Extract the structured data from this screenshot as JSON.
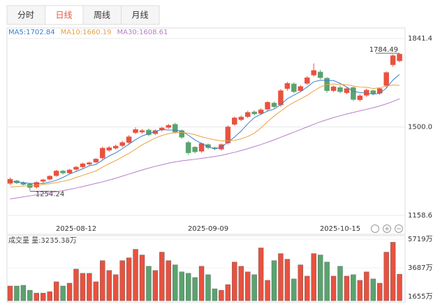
{
  "tabs": [
    "分时",
    "日线",
    "周线",
    "月线"
  ],
  "active_tab": 1,
  "chart_data": {
    "type": "candlestick",
    "categories": [
      null,
      null,
      null,
      null,
      null,
      null,
      null,
      null,
      null,
      null,
      "2025-08-12",
      null,
      null,
      null,
      null,
      null,
      null,
      null,
      null,
      null,
      null,
      null,
      null,
      null,
      null,
      null,
      null,
      null,
      null,
      null,
      "2025-09-09",
      null,
      null,
      null,
      null,
      null,
      null,
      null,
      null,
      null,
      null,
      null,
      null,
      null,
      null,
      null,
      null,
      null,
      null,
      null,
      "2025-10-15",
      null,
      null,
      null,
      null,
      null,
      null,
      null,
      null,
      null
    ],
    "candles": {
      "open": [
        1282,
        1292,
        1285,
        1280,
        1268,
        1290,
        1298,
        1312,
        1330,
        1322,
        1336,
        1346,
        1356,
        1364,
        1380,
        1410,
        1418,
        1428,
        1440,
        1478,
        1480,
        1488,
        1474,
        1488,
        1498,
        1510,
        1486,
        1440,
        1422,
        1406,
        1432,
        1420,
        1414,
        1438,
        1510,
        1528,
        1540,
        1558,
        1552,
        1568,
        1592,
        1585,
        1648,
        1666,
        1640,
        1668,
        1700,
        1712,
        1688,
        1640,
        1652,
        1632,
        1652,
        1605,
        1622,
        1640,
        1630,
        1660,
        1740,
        1755
      ],
      "high": [
        1305,
        1296,
        1290,
        1284,
        1290,
        1300,
        1314,
        1334,
        1334,
        1338,
        1350,
        1362,
        1366,
        1380,
        1424,
        1426,
        1432,
        1446,
        1468,
        1498,
        1492,
        1494,
        1490,
        1500,
        1512,
        1516,
        1490,
        1446,
        1426,
        1440,
        1436,
        1424,
        1436,
        1506,
        1540,
        1544,
        1562,
        1564,
        1572,
        1600,
        1598,
        1646,
        1674,
        1672,
        1662,
        1696,
        1745,
        1720,
        1692,
        1660,
        1660,
        1654,
        1656,
        1626,
        1648,
        1644,
        1652,
        1714,
        1780,
        1784.49
      ],
      "low": [
        1276,
        1280,
        1274,
        1254.24,
        1262,
        1284,
        1294,
        1308,
        1316,
        1318,
        1330,
        1340,
        1350,
        1360,
        1374,
        1404,
        1412,
        1422,
        1434,
        1472,
        1474,
        1464,
        1468,
        1482,
        1492,
        1474,
        1454,
        1392,
        1398,
        1400,
        1414,
        1410,
        1408,
        1432,
        1504,
        1522,
        1534,
        1544,
        1546,
        1562,
        1572,
        1578,
        1640,
        1630,
        1634,
        1662,
        1694,
        1684,
        1632,
        1634,
        1630,
        1626,
        1600,
        1598,
        1616,
        1622,
        1624,
        1652,
        1732,
        1750
      ],
      "close": [
        1298,
        1284,
        1278,
        1266,
        1286,
        1296,
        1310,
        1330,
        1322,
        1334,
        1345,
        1358,
        1362,
        1376,
        1418,
        1420,
        1426,
        1440,
        1462,
        1490,
        1486,
        1470,
        1486,
        1496,
        1506,
        1480,
        1460,
        1400,
        1404,
        1436,
        1420,
        1416,
        1432,
        1500,
        1535,
        1538,
        1556,
        1550,
        1566,
        1595,
        1578,
        1640,
        1668,
        1636,
        1656,
        1690,
        1718,
        1690,
        1640,
        1655,
        1636,
        1648,
        1606,
        1620,
        1642,
        1628,
        1648,
        1710,
        1775,
        1781
      ],
      "up_color": "#e8523f",
      "down_color": "#5aa36f"
    },
    "series": [
      {
        "name": "MA5:1702.84",
        "color": "#3a7fcf",
        "values": [
          1290,
          1288,
          1285,
          1282,
          1282,
          1282,
          1287,
          1294,
          1305,
          1318,
          1328,
          1338,
          1350,
          1355,
          1372,
          1388,
          1400,
          1416,
          1433,
          1451,
          1465,
          1474,
          1483,
          1490,
          1488,
          1488,
          1484,
          1468,
          1450,
          1436,
          1424,
          1415,
          1422,
          1441,
          1461,
          1484,
          1512,
          1536,
          1549,
          1561,
          1569,
          1586,
          1609,
          1623,
          1636,
          1654,
          1674,
          1680,
          1679,
          1679,
          1668,
          1654,
          1637,
          1633,
          1630,
          1627,
          1629,
          1650,
          1681,
          1702.84
        ]
      },
      {
        "name": "MA10:1660.19",
        "color": "#e8a33c",
        "values": [
          1268,
          1270,
          1272,
          1273,
          1275,
          1278,
          1281,
          1285,
          1290,
          1296,
          1305,
          1313,
          1322,
          1330,
          1345,
          1358,
          1370,
          1384,
          1398,
          1414,
          1431,
          1444,
          1457,
          1467,
          1474,
          1478,
          1479,
          1476,
          1470,
          1462,
          1456,
          1450,
          1446,
          1446,
          1448,
          1454,
          1463,
          1476,
          1496,
          1520,
          1542,
          1561,
          1580,
          1595,
          1608,
          1622,
          1639,
          1654,
          1664,
          1666,
          1664,
          1663,
          1658,
          1654,
          1653,
          1648,
          1651,
          1658,
          1662,
          1660.19
        ]
      },
      {
        "name": "MA30:1608.61",
        "color": "#b57fc8",
        "values": [
          1222,
          1226,
          1230,
          1234,
          1238,
          1242,
          1246,
          1250,
          1254,
          1259,
          1264,
          1270,
          1276,
          1282,
          1288,
          1295,
          1302,
          1310,
          1318,
          1326,
          1334,
          1341,
          1348,
          1354,
          1360,
          1365,
          1369,
          1372,
          1375,
          1379,
          1382,
          1386,
          1390,
          1396,
          1402,
          1409,
          1416,
          1424,
          1432,
          1441,
          1450,
          1460,
          1470,
          1480,
          1490,
          1500,
          1510,
          1520,
          1528,
          1536,
          1543,
          1550,
          1556,
          1562,
          1568,
          1574,
          1581,
          1589,
          1598,
          1608.61
        ]
      }
    ],
    "ylim": [
      1158.6,
      1841.4
    ],
    "yticks": [
      1841.4,
      {
        "value": 1500,
        "label": "1500.0"
      },
      1158.6
    ],
    "grid": true,
    "volume": {
      "title": "成交量 量:3235.38万",
      "values": [
        2400,
        2400,
        2450,
        2100,
        1900,
        1900,
        2000,
        2700,
        2400,
        2600,
        3600,
        3300,
        3300,
        2700,
        4200,
        3500,
        3200,
        4200,
        4400,
        5000,
        4600,
        3800,
        3500,
        4800,
        4200,
        3900,
        3400,
        3300,
        3000,
        3800,
        3200,
        2200,
        2100,
        2500,
        4100,
        3800,
        3400,
        3200,
        5100,
        2800,
        4200,
        4700,
        4300,
        2900,
        3900,
        3100,
        4700,
        4600,
        4100,
        3100,
        3800,
        3100,
        3200,
        2800,
        3400,
        2900,
        2600,
        4800,
        5500,
        3235.38
      ],
      "ylim": [
        1358,
        5719
      ],
      "yticks": [
        {
          "value": 5719,
          "label": "5719万"
        },
        {
          "value": 3687,
          "label": "3687万"
        },
        {
          "value": 1655,
          "label": "1655万"
        }
      ]
    }
  }
}
